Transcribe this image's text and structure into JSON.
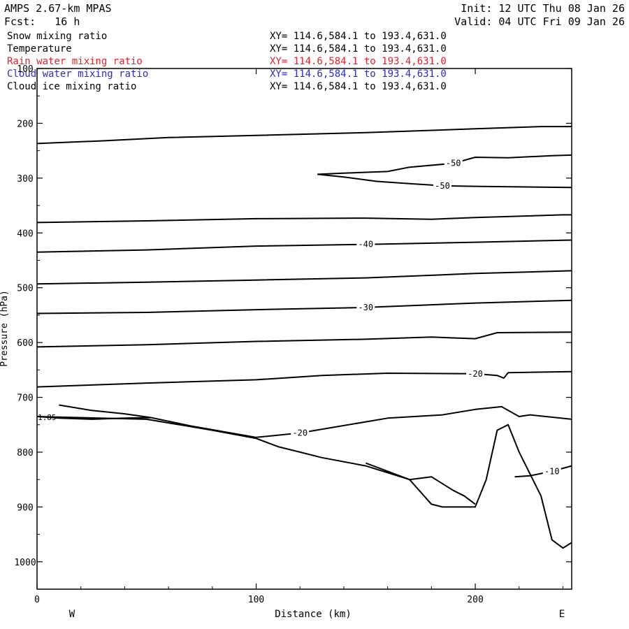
{
  "header": {
    "model": "AMPS 2.67-km MPAS",
    "init": "Init: 12 UTC Thu 08 Jan 26",
    "fcst": "Fcst:   16 h",
    "valid": "Valid: 04 UTC Fri 09 Jan 26"
  },
  "fields": [
    {
      "name": "Snow mixing ratio",
      "xy": "XY= 114.6,584.1 to 193.4,631.0",
      "color": "#000000"
    },
    {
      "name": "Temperature",
      "xy": "XY= 114.6,584.1 to 193.4,631.0",
      "color": "#000000"
    },
    {
      "name": "Rain water mixing ratio",
      "xy": "XY= 114.6,584.1 to 193.4,631.0",
      "color": "#e8202a"
    },
    {
      "name": "Cloud water mixing ratio",
      "xy": "XY= 114.6,584.1 to 193.4,631.0",
      "color": "#2a2ad0"
    },
    {
      "name": "Cloud ice mixing ratio",
      "xy": "XY= 114.6,584.1 to 193.4,631.0",
      "color": "#000000"
    }
  ],
  "chart_data": {
    "type": "line",
    "title": "",
    "xlabel": "Distance (km)",
    "ylabel": "Pressure (hPa)",
    "xlim": [
      0,
      244
    ],
    "ylim": [
      1050,
      100
    ],
    "xticks": [
      0,
      100,
      200
    ],
    "yticks": [
      100,
      200,
      300,
      400,
      500,
      600,
      700,
      800,
      900,
      1000
    ],
    "left_end_label": "W",
    "right_end_label": "E",
    "surface_label": "1.85",
    "grid": false,
    "series": [
      {
        "kind": "isotherm",
        "x": [
          0,
          30,
          60,
          100,
          150,
          200,
          230,
          244
        ],
        "y": [
          237,
          232,
          226,
          222,
          217,
          210,
          206,
          206
        ]
      },
      {
        "kind": "isotherm",
        "label": "-50",
        "x": [
          128,
          140,
          160,
          170,
          190,
          200,
          215,
          235,
          244
        ],
        "y": [
          293,
          291,
          288,
          280,
          273,
          262,
          263,
          259,
          258
        ]
      },
      {
        "kind": "isotherm",
        "label": "-50",
        "x": [
          128,
          140,
          155,
          170,
          185,
          200,
          220,
          244
        ],
        "y": [
          293,
          298,
          306,
          310,
          314,
          315,
          316,
          317
        ]
      },
      {
        "kind": "isotherm",
        "x": [
          0,
          50,
          100,
          150,
          180,
          200,
          240,
          244
        ],
        "y": [
          381,
          378,
          374,
          373,
          375,
          372,
          367,
          367
        ]
      },
      {
        "kind": "isotherm",
        "label": "-40",
        "x": [
          0,
          50,
          100,
          150,
          200,
          244
        ],
        "y": [
          435,
          431,
          424,
          421,
          417,
          413
        ]
      },
      {
        "kind": "isotherm",
        "x": [
          0,
          50,
          100,
          150,
          200,
          244
        ],
        "y": [
          493,
          490,
          486,
          482,
          474,
          469
        ]
      },
      {
        "kind": "isotherm",
        "label": "-30",
        "x": [
          0,
          50,
          100,
          150,
          200,
          244
        ],
        "y": [
          547,
          545,
          540,
          536,
          528,
          523
        ]
      },
      {
        "kind": "isotherm",
        "x": [
          0,
          50,
          100,
          150,
          180,
          200,
          210,
          244
        ],
        "y": [
          608,
          604,
          598,
          594,
          590,
          593,
          582,
          581
        ]
      },
      {
        "kind": "isotherm",
        "label": "-20",
        "x": [
          0,
          50,
          100,
          130,
          160,
          200,
          210,
          213,
          215,
          244
        ],
        "y": [
          681,
          674,
          668,
          660,
          656,
          657,
          660,
          665,
          655,
          653
        ]
      },
      {
        "kind": "isotherm",
        "label": "-20",
        "x": [
          0,
          10,
          25,
          40,
          52,
          70,
          100,
          120,
          160,
          185,
          200,
          212,
          220,
          225,
          244
        ],
        "y": [
          735,
          738,
          740,
          738,
          737,
          752,
          773,
          765,
          738,
          732,
          722,
          717,
          735,
          732,
          740
        ]
      },
      {
        "kind": "isotherm",
        "x": [
          10,
          25,
          40,
          52
        ],
        "y": [
          714,
          724,
          730,
          737
        ]
      },
      {
        "kind": "isotherm",
        "label": "-10",
        "x": [
          218,
          225,
          235,
          244
        ],
        "y": [
          845,
          843,
          835,
          825
        ]
      },
      {
        "kind": "terrain",
        "x": [
          0,
          50,
          80,
          100,
          110,
          120,
          130,
          150,
          170,
          180,
          185,
          200,
          205,
          210,
          215,
          220,
          230,
          235,
          240,
          244
        ],
        "y": [
          735,
          740,
          760,
          775,
          790,
          800,
          810,
          825,
          850,
          895,
          900,
          900,
          850,
          760,
          750,
          800,
          880,
          960,
          975,
          965
        ]
      },
      {
        "kind": "terrain",
        "x": [
          150,
          170,
          180,
          190,
          195,
          200
        ],
        "y": [
          820,
          850,
          845,
          870,
          880,
          895
        ]
      }
    ]
  }
}
